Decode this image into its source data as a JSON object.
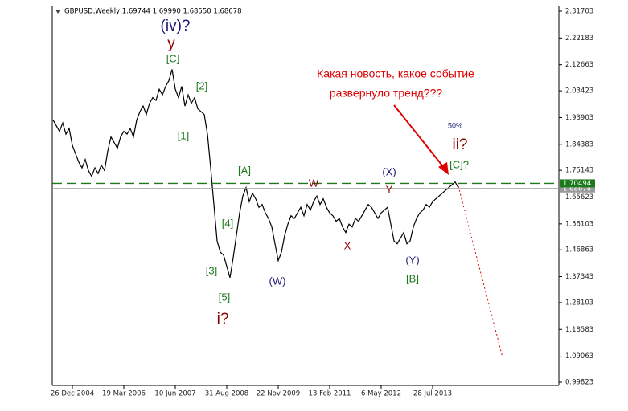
{
  "chart_data": {
    "type": "line",
    "title": "GBPUSD,Weekly  1.69744 1.69990 1.68550 1.68678",
    "categories": [
      null,
      null,
      null,
      null,
      null,
      null,
      "26 Dec 2004",
      null,
      null,
      null,
      null,
      null,
      null,
      null,
      null,
      null,
      null,
      null,
      null,
      null,
      null,
      null,
      "19 Mar 2006",
      null,
      null,
      null,
      null,
      null,
      null,
      null,
      null,
      null,
      null,
      null,
      null,
      null,
      null,
      null,
      "10 Jun 2007",
      null,
      null,
      null,
      null,
      null,
      null,
      null,
      null,
      null,
      null,
      null,
      null,
      null,
      null,
      null,
      "31 Aug 2008",
      null,
      null,
      null,
      null,
      null,
      null,
      null,
      null,
      null,
      null,
      null,
      null,
      null,
      null,
      null,
      "22 Nov 2009",
      null,
      null,
      null,
      null,
      null,
      null,
      null,
      null,
      null,
      null,
      null,
      null,
      null,
      null,
      null,
      "13 Feb 2011",
      null,
      null,
      null,
      null,
      null,
      null,
      null,
      null,
      null,
      null,
      null,
      null,
      null,
      null,
      null,
      "6 May 2012",
      null,
      null,
      null,
      null,
      null,
      null,
      null,
      null,
      null,
      null,
      null,
      null,
      null,
      null,
      null,
      "28 Jul 2013",
      null,
      null,
      null,
      null,
      null,
      null,
      null,
      null
    ],
    "series": [
      {
        "color": "#000000",
        "values": [
          1.93,
          1.91,
          1.89,
          1.92,
          1.88,
          1.9,
          1.84,
          1.81,
          1.78,
          1.76,
          1.79,
          1.75,
          1.73,
          1.76,
          1.74,
          1.77,
          1.75,
          1.82,
          1.87,
          1.85,
          1.83,
          1.87,
          1.89,
          1.88,
          1.9,
          1.87,
          1.93,
          1.96,
          1.98,
          1.95,
          1.99,
          2.01,
          2.0,
          2.04,
          2.02,
          2.05,
          2.07,
          2.11,
          2.04,
          2.01,
          2.05,
          1.98,
          2.02,
          1.99,
          2.01,
          1.97,
          1.96,
          1.95,
          1.88,
          1.76,
          1.63,
          1.5,
          1.46,
          1.45,
          1.41,
          1.37,
          1.44,
          1.52,
          1.6,
          1.66,
          1.69,
          1.64,
          1.67,
          1.65,
          1.62,
          1.63,
          1.6,
          1.58,
          1.55,
          1.49,
          1.43,
          1.46,
          1.52,
          1.56,
          1.59,
          1.58,
          1.6,
          1.62,
          1.59,
          1.63,
          1.61,
          1.64,
          1.66,
          1.63,
          1.65,
          1.62,
          1.6,
          1.59,
          1.57,
          1.58,
          1.55,
          1.53,
          1.56,
          1.55,
          1.58,
          1.57,
          1.59,
          1.61,
          1.63,
          1.62,
          1.6,
          1.58,
          1.6,
          1.61,
          1.62,
          1.56,
          1.5,
          1.49,
          1.51,
          1.53,
          1.49,
          1.5,
          1.55,
          1.58,
          1.6,
          1.61,
          1.63,
          1.62,
          1.64,
          1.65,
          1.66,
          1.67,
          1.68,
          1.69,
          1.7,
          1.71,
          1.69
        ]
      }
    ],
    "ylim": [
      0.9868,
      2.3342
    ],
    "yticks": [
      2.31703,
      2.22183,
      2.12663,
      2.03423,
      1.93903,
      1.84383,
      1.75143,
      1.65623,
      1.56103,
      1.46863,
      1.37343,
      1.28103,
      1.18583,
      1.09063,
      0.99823
    ],
    "levels": [
      {
        "value": 1.68678,
        "color": "#9a9a9a"
      },
      {
        "value": 1.70494,
        "color": "#1c7a1c",
        "dashed": true
      }
    ],
    "annotations": [
      {
        "text": "(iv)?",
        "color": "#1a1a7a"
      },
      {
        "text": "y",
        "color": "#8b0000"
      },
      {
        "text": "[C]",
        "color": "#1c7a1c"
      },
      {
        "text": "[2]",
        "color": "#1c7a1c"
      },
      {
        "text": "[1]",
        "color": "#1c7a1c"
      },
      {
        "text": "[A]",
        "color": "#1c7a1c"
      },
      {
        "text": "[4]",
        "color": "#1c7a1c"
      },
      {
        "text": "[3]",
        "color": "#1c7a1c"
      },
      {
        "text": "[5]",
        "color": "#1c7a1c"
      },
      {
        "text": "i?",
        "color": "#8b0000"
      },
      {
        "text": "(W)",
        "color": "#1a1a7a"
      },
      {
        "text": "W",
        "color": "#8b0000"
      },
      {
        "text": "X",
        "color": "#8b0000"
      },
      {
        "text": "(X)",
        "color": "#1a1a7a"
      },
      {
        "text": "Y",
        "color": "#8b0000"
      },
      {
        "text": "(Y)",
        "color": "#1a1a7a"
      },
      {
        "text": "[B]",
        "color": "#1c7a1c"
      },
      {
        "text": "50%",
        "color": "#1a1a7a"
      },
      {
        "text": "ii?",
        "color": "#8b0000"
      },
      {
        "text": "[C]?",
        "color": "#1c7a1c"
      },
      {
        "text": "Какая новость, какое событие",
        "color": "#e00000"
      },
      {
        "text": "развернуло тренд???",
        "color": "#e00000"
      }
    ]
  }
}
